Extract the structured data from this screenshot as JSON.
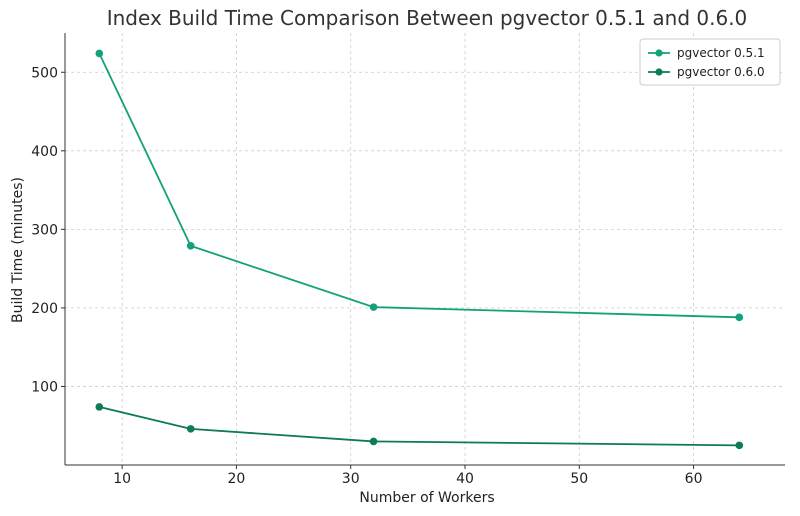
{
  "chart_data": {
    "type": "line",
    "title": "Index Build Time Comparison Between pgvector 0.5.1 and 0.6.0",
    "xlabel": "Number of Workers",
    "ylabel": "Build Time (minutes)",
    "xlim": [
      5,
      68
    ],
    "ylim": [
      0,
      550
    ],
    "xticks": [
      10,
      20,
      30,
      40,
      50,
      60
    ],
    "yticks": [
      100,
      200,
      300,
      400,
      500
    ],
    "grid": true,
    "legend_position": "top-right",
    "x": [
      8,
      16,
      32,
      64
    ],
    "series": [
      {
        "name": "pgvector 0.5.1",
        "color": "#13a07a",
        "values": [
          524,
          279,
          201,
          188
        ]
      },
      {
        "name": "pgvector 0.6.0",
        "color": "#0d7a5a",
        "values": [
          74,
          46,
          30,
          25
        ]
      }
    ]
  }
}
